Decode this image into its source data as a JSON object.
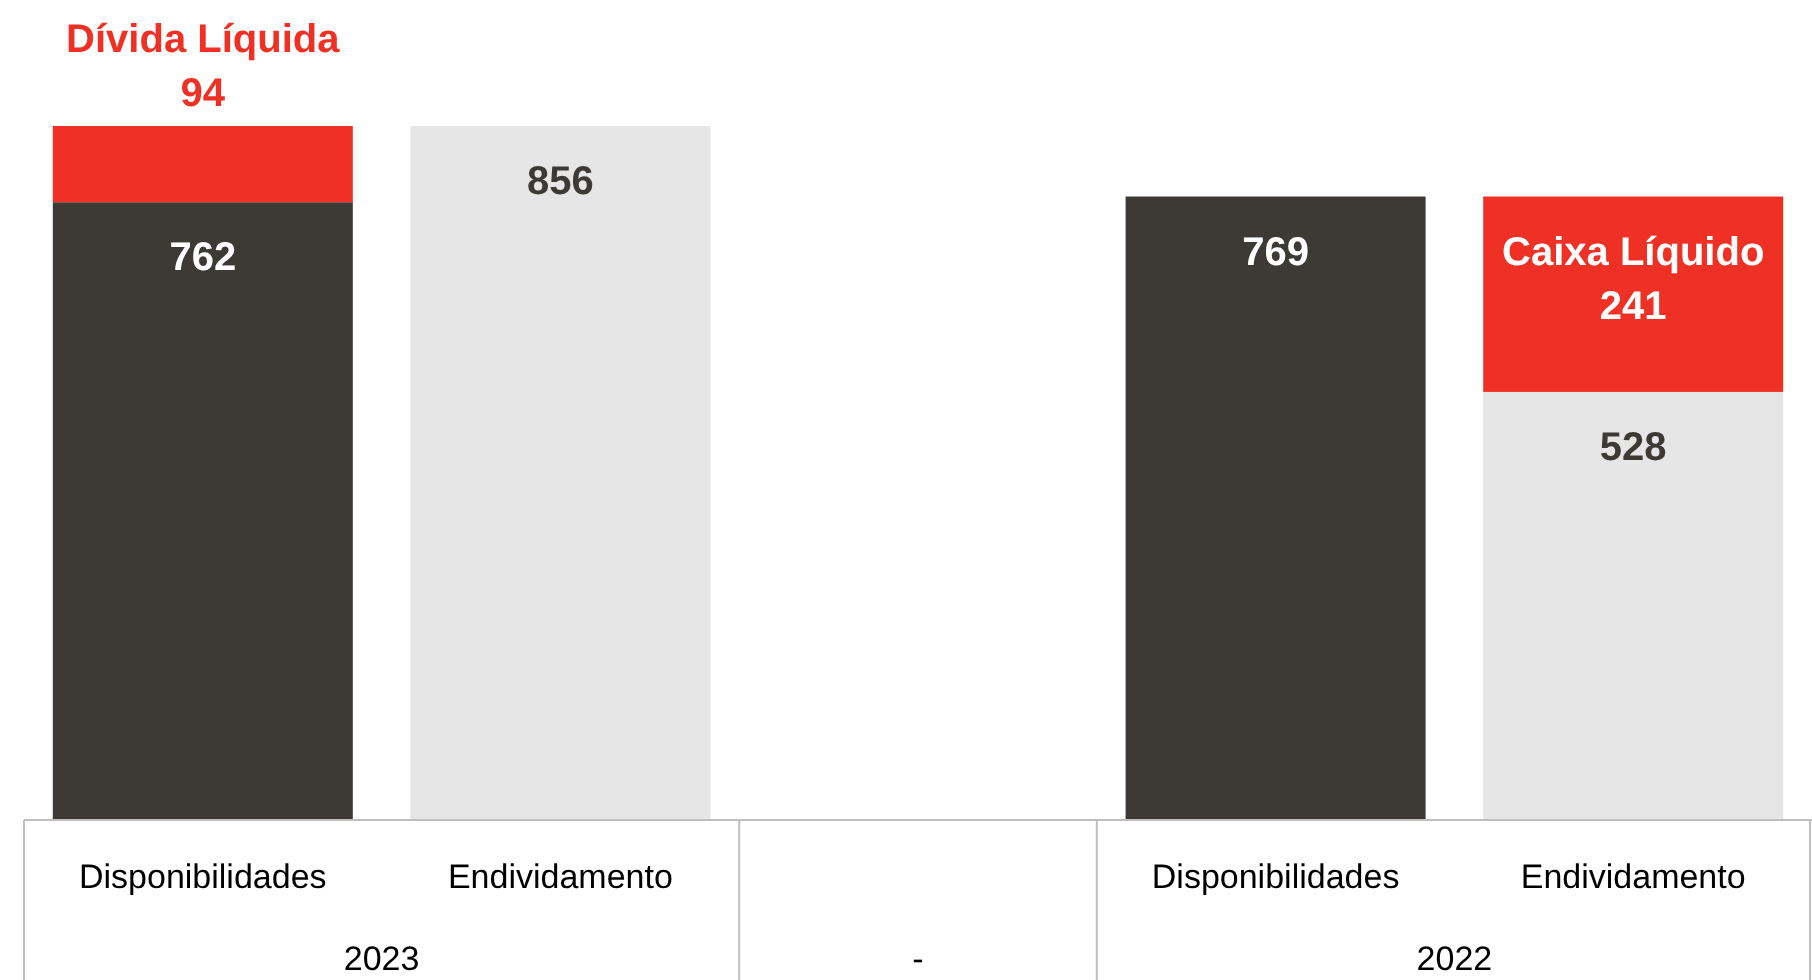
{
  "chart_data": {
    "type": "bar",
    "stacked": true,
    "categories": [
      "Disponibilidades",
      "Endividamento",
      null,
      "Disponibilidades",
      "Endividamento"
    ],
    "series": [
      {
        "color": "#3d3935",
        "values": [
          762,
          null,
          null,
          769,
          null
        ],
        "value_labels": [
          "762",
          null,
          null,
          "769",
          null
        ]
      },
      {
        "color": "#e6e6e6",
        "values": [
          null,
          856,
          null,
          null,
          528
        ],
        "value_labels": [
          null,
          "856",
          null,
          null,
          "528"
        ]
      },
      {
        "color": "#ee3124",
        "values": [
          94,
          null,
          null,
          null,
          241
        ],
        "value_labels": [
          "Dívida Líquida 94",
          null,
          null,
          null,
          "Caixa Líquido 241"
        ]
      }
    ],
    "annotations": [
      "2023",
      "-",
      "2022"
    ]
  }
}
